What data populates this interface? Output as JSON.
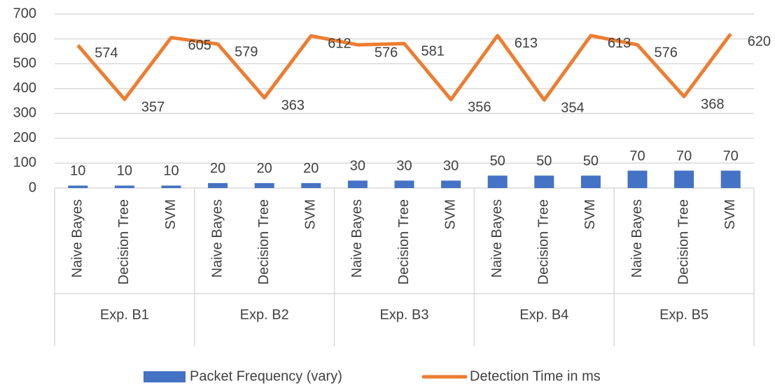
{
  "chart_data": {
    "type": "combo",
    "groups": [
      {
        "name": "Exp. B1",
        "categories": [
          "Naive Bayes",
          "Decision Tree",
          "SVM"
        ]
      },
      {
        "name": "Exp. B2",
        "categories": [
          "Naive Bayes",
          "Decision Tree",
          "SVM"
        ]
      },
      {
        "name": "Exp. B3",
        "categories": [
          "Naive Bayes",
          "Decision Tree",
          "SVM"
        ]
      },
      {
        "name": "Exp. B4",
        "categories": [
          "Naive Bayes",
          "Decision Tree",
          "SVM"
        ]
      },
      {
        "name": "Exp. B5",
        "categories": [
          "Naive Bayes",
          "Decision Tree",
          "SVM"
        ]
      }
    ],
    "series": [
      {
        "name": "Packet Frequency (vary)",
        "type": "bar",
        "color": "#4472c4",
        "values": [
          10,
          10,
          10,
          20,
          20,
          20,
          30,
          30,
          30,
          50,
          50,
          50,
          70,
          70,
          70
        ]
      },
      {
        "name": "Detection Time in ms",
        "type": "line",
        "color": "#ed7d31",
        "values": [
          574,
          357,
          605,
          579,
          363,
          612,
          576,
          581,
          356,
          613,
          354,
          613,
          576,
          368,
          620
        ]
      }
    ],
    "ylim": [
      0,
      700
    ],
    "yticks": [
      0,
      100,
      200,
      300,
      400,
      500,
      600,
      700
    ],
    "grid": true,
    "legend": "bottom"
  }
}
